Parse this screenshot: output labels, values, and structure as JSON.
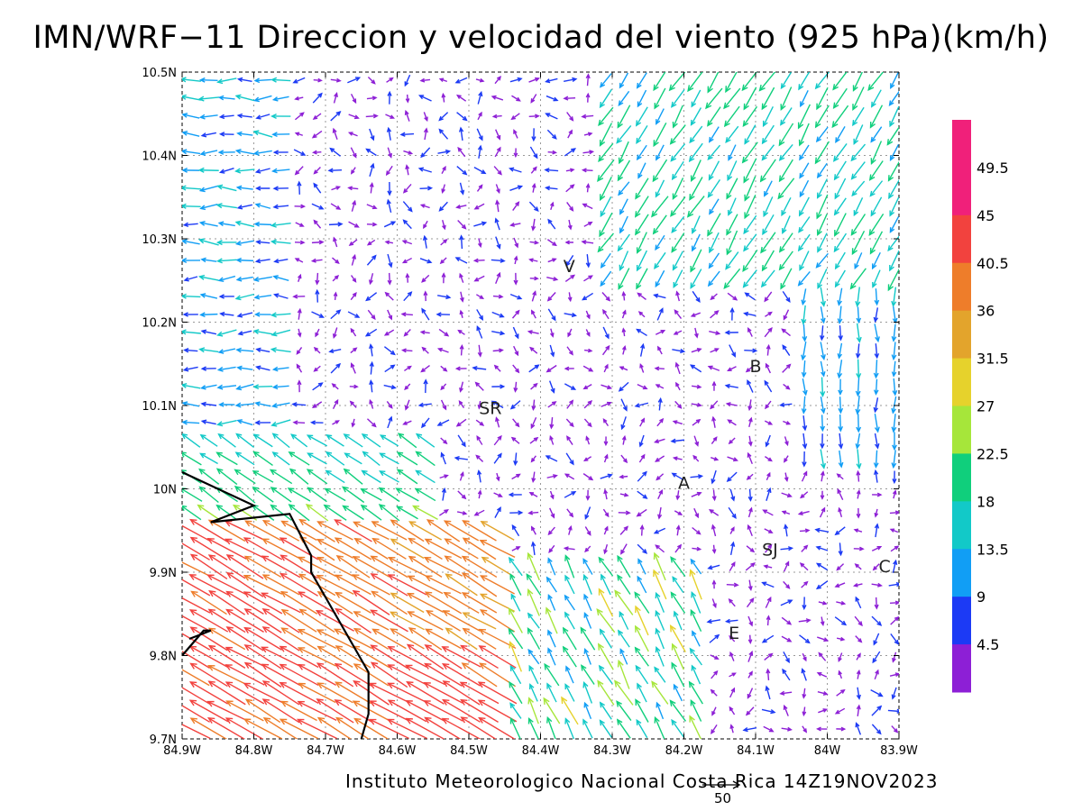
{
  "title": "IMN/WRF−11 Direccion y velocidad del viento (925 hPa)(km/h)",
  "credit": "Instituto Meteorologico Nacional Costa Rica 14Z19NOV2023",
  "map": {
    "lon_range": [
      -84.9,
      -83.9
    ],
    "lat_range": [
      9.7,
      10.5
    ],
    "y_ticks": [
      "10.5N",
      "10.4N",
      "10.3N",
      "10.2N",
      "10.1N",
      "10N",
      "9.9N",
      "9.8N",
      "9.7N"
    ],
    "x_ticks": [
      "84.9W",
      "84.8W",
      "84.7W",
      "84.6W",
      "84.5W",
      "84.4W",
      "84.3W",
      "84.2W",
      "84.1W",
      "84W",
      "83.9W"
    ],
    "grid": "dotted",
    "coastline": [
      [
        -84.9,
        10.02
      ],
      [
        -84.8,
        9.98
      ],
      [
        -84.86,
        9.96
      ],
      [
        -84.75,
        9.97
      ],
      [
        -84.72,
        9.92
      ],
      [
        -84.72,
        9.9
      ],
      [
        -84.7,
        9.87
      ],
      [
        -84.68,
        9.84
      ],
      [
        -84.66,
        9.81
      ],
      [
        -84.64,
        9.78
      ],
      [
        -84.64,
        9.73
      ],
      [
        -84.65,
        9.7
      ]
    ],
    "coastline2": [
      [
        -84.9,
        9.8
      ],
      [
        -84.87,
        9.83
      ],
      [
        -84.86,
        9.83
      ],
      [
        -84.89,
        9.82
      ]
    ],
    "cities": [
      {
        "label": "V",
        "lon": -84.36,
        "lat": 10.26
      },
      {
        "label": "B",
        "lon": -84.1,
        "lat": 10.14
      },
      {
        "label": "SR",
        "lon": -84.47,
        "lat": 10.09
      },
      {
        "label": "A",
        "lon": -84.2,
        "lat": 10.0
      },
      {
        "label": "SJ",
        "lon": -84.08,
        "lat": 9.92
      },
      {
        "label": "C",
        "lon": -83.92,
        "lat": 9.9
      },
      {
        "label": "E",
        "lon": -84.13,
        "lat": 9.82
      }
    ]
  },
  "colorbar": {
    "labels": [
      "49.5",
      "45",
      "40.5",
      "36",
      "31.5",
      "27",
      "22.5",
      "18",
      "13.5",
      "9",
      "4.5"
    ],
    "colors": [
      "#f0207a",
      "#f2423e",
      "#ee7d2a",
      "#e3a42c",
      "#e6d22c",
      "#a6e63a",
      "#10cf7c",
      "#12c9c8",
      "#119ef5",
      "#1c3af5",
      "#8d1fd6"
    ]
  },
  "wind_colors": {
    "very_weak": "#8d1fd6",
    "weak": "#1c3af5",
    "light": "#119ef5",
    "moderate": "#12c9c8",
    "fresh": "#10cf7c",
    "strong": "#a6e63a",
    "yellow": "#e6d22c",
    "orange_light": "#e3a42c",
    "orange": "#ee7d2a",
    "red": "#f2423e"
  },
  "reference_vector": {
    "label": "50"
  }
}
